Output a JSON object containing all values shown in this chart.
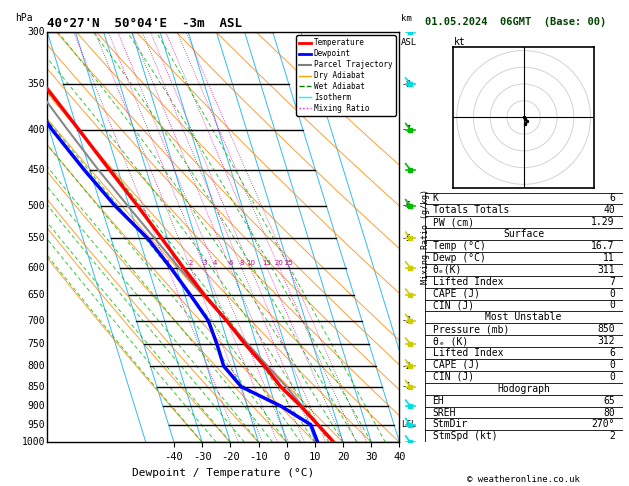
{
  "title_left": "40°27'N  50°04'E  -3m  ASL",
  "title_right": "01.05.2024  06GMT  (Base: 00)",
  "xlabel": "Dewpoint / Temperature (°C)",
  "temp_profile": {
    "pressure": [
      1000,
      950,
      900,
      850,
      800,
      750,
      700,
      650,
      600,
      550,
      500,
      450,
      400,
      350,
      300
    ],
    "temp": [
      16.7,
      13.0,
      9.0,
      4.0,
      0.5,
      -4.0,
      -8.0,
      -13.0,
      -17.5,
      -22.0,
      -27.0,
      -33.0,
      -39.5,
      -47.0,
      -53.0
    ]
  },
  "dewp_profile": {
    "pressure": [
      1000,
      950,
      900,
      850,
      800,
      750,
      700,
      650,
      600,
      550,
      500,
      450,
      400,
      350,
      300
    ],
    "dewp": [
      11.0,
      10.5,
      2.0,
      -10.0,
      -14.0,
      -14.0,
      -14.5,
      -18.0,
      -22.0,
      -27.0,
      -35.0,
      -42.0,
      -49.0,
      -55.0,
      -60.0
    ]
  },
  "parcel_profile": {
    "pressure": [
      1000,
      950,
      900,
      850,
      800,
      750,
      700,
      650,
      600,
      550,
      500,
      450,
      400,
      350,
      300
    ],
    "temp": [
      16.7,
      13.0,
      9.5,
      6.0,
      1.5,
      -3.0,
      -8.0,
      -13.5,
      -19.0,
      -24.5,
      -30.5,
      -37.0,
      -43.5,
      -50.5,
      -58.0
    ]
  },
  "stats": {
    "K": "6",
    "Totals_Totals": "40",
    "PW_cm": "1.29",
    "Surf_Temp": "16.7",
    "Surf_Dewp": "11",
    "Surf_ThetaE": "311",
    "Surf_LI": "7",
    "Surf_CAPE": "0",
    "Surf_CIN": "0",
    "MU_Press": "850",
    "MU_ThetaE": "312",
    "MU_LI": "6",
    "MU_CAPE": "0",
    "MU_CIN": "0",
    "EH": "65",
    "SREH": "80",
    "StmDir": "270°",
    "StmSpd": "2"
  },
  "pmin": 300,
  "pmax": 1000,
  "Tmin": -40,
  "Tmax": 40,
  "skew": 45,
  "pressure_ticks": [
    300,
    350,
    400,
    450,
    500,
    550,
    600,
    650,
    700,
    750,
    800,
    850,
    900,
    950,
    1000
  ],
  "dry_adiabat_thetas": [
    -30,
    -20,
    -10,
    0,
    10,
    20,
    30,
    40,
    50,
    60,
    70,
    80,
    100,
    120,
    140,
    160
  ],
  "wet_adiabat_Tstarts": [
    -30,
    -25,
    -20,
    -15,
    -10,
    -5,
    0,
    5,
    10,
    15,
    20,
    25,
    30,
    35
  ],
  "mixing_ratios": [
    1,
    2,
    3,
    4,
    6,
    8,
    10,
    15,
    20,
    25
  ],
  "km_heights": [
    [
      350,
      "8"
    ],
    [
      400,
      "7"
    ],
    [
      500,
      "6"
    ],
    [
      550,
      "5"
    ],
    [
      700,
      "3"
    ],
    [
      800,
      "2"
    ],
    [
      850,
      "1"
    ],
    [
      950,
      "LCL"
    ]
  ],
  "colors": {
    "temp": "#ff0000",
    "dewp": "#0000ff",
    "parcel": "#888888",
    "dry_adiabat": "#ff8800",
    "wet_adiabat": "#00bb00",
    "isotherm": "#00aaee",
    "mixing_ratio": "#cc0088",
    "grid": "#000000"
  },
  "wind_barbs": [
    [
      300,
      "cyan"
    ],
    [
      350,
      "cyan"
    ],
    [
      400,
      "green"
    ],
    [
      450,
      "green"
    ],
    [
      500,
      "green"
    ],
    [
      550,
      "yellow"
    ],
    [
      600,
      "yellow"
    ],
    [
      650,
      "yellow"
    ],
    [
      700,
      "yellow"
    ],
    [
      750,
      "yellow"
    ],
    [
      800,
      "yellow"
    ],
    [
      850,
      "yellow"
    ],
    [
      900,
      "cyan"
    ],
    [
      950,
      "cyan"
    ],
    [
      1000,
      "cyan"
    ]
  ],
  "hodo_u": [
    0,
    1,
    2,
    1
  ],
  "hodo_v": [
    0,
    -1,
    -2,
    -4
  ],
  "hodo_rings": [
    10,
    20,
    30,
    40
  ]
}
